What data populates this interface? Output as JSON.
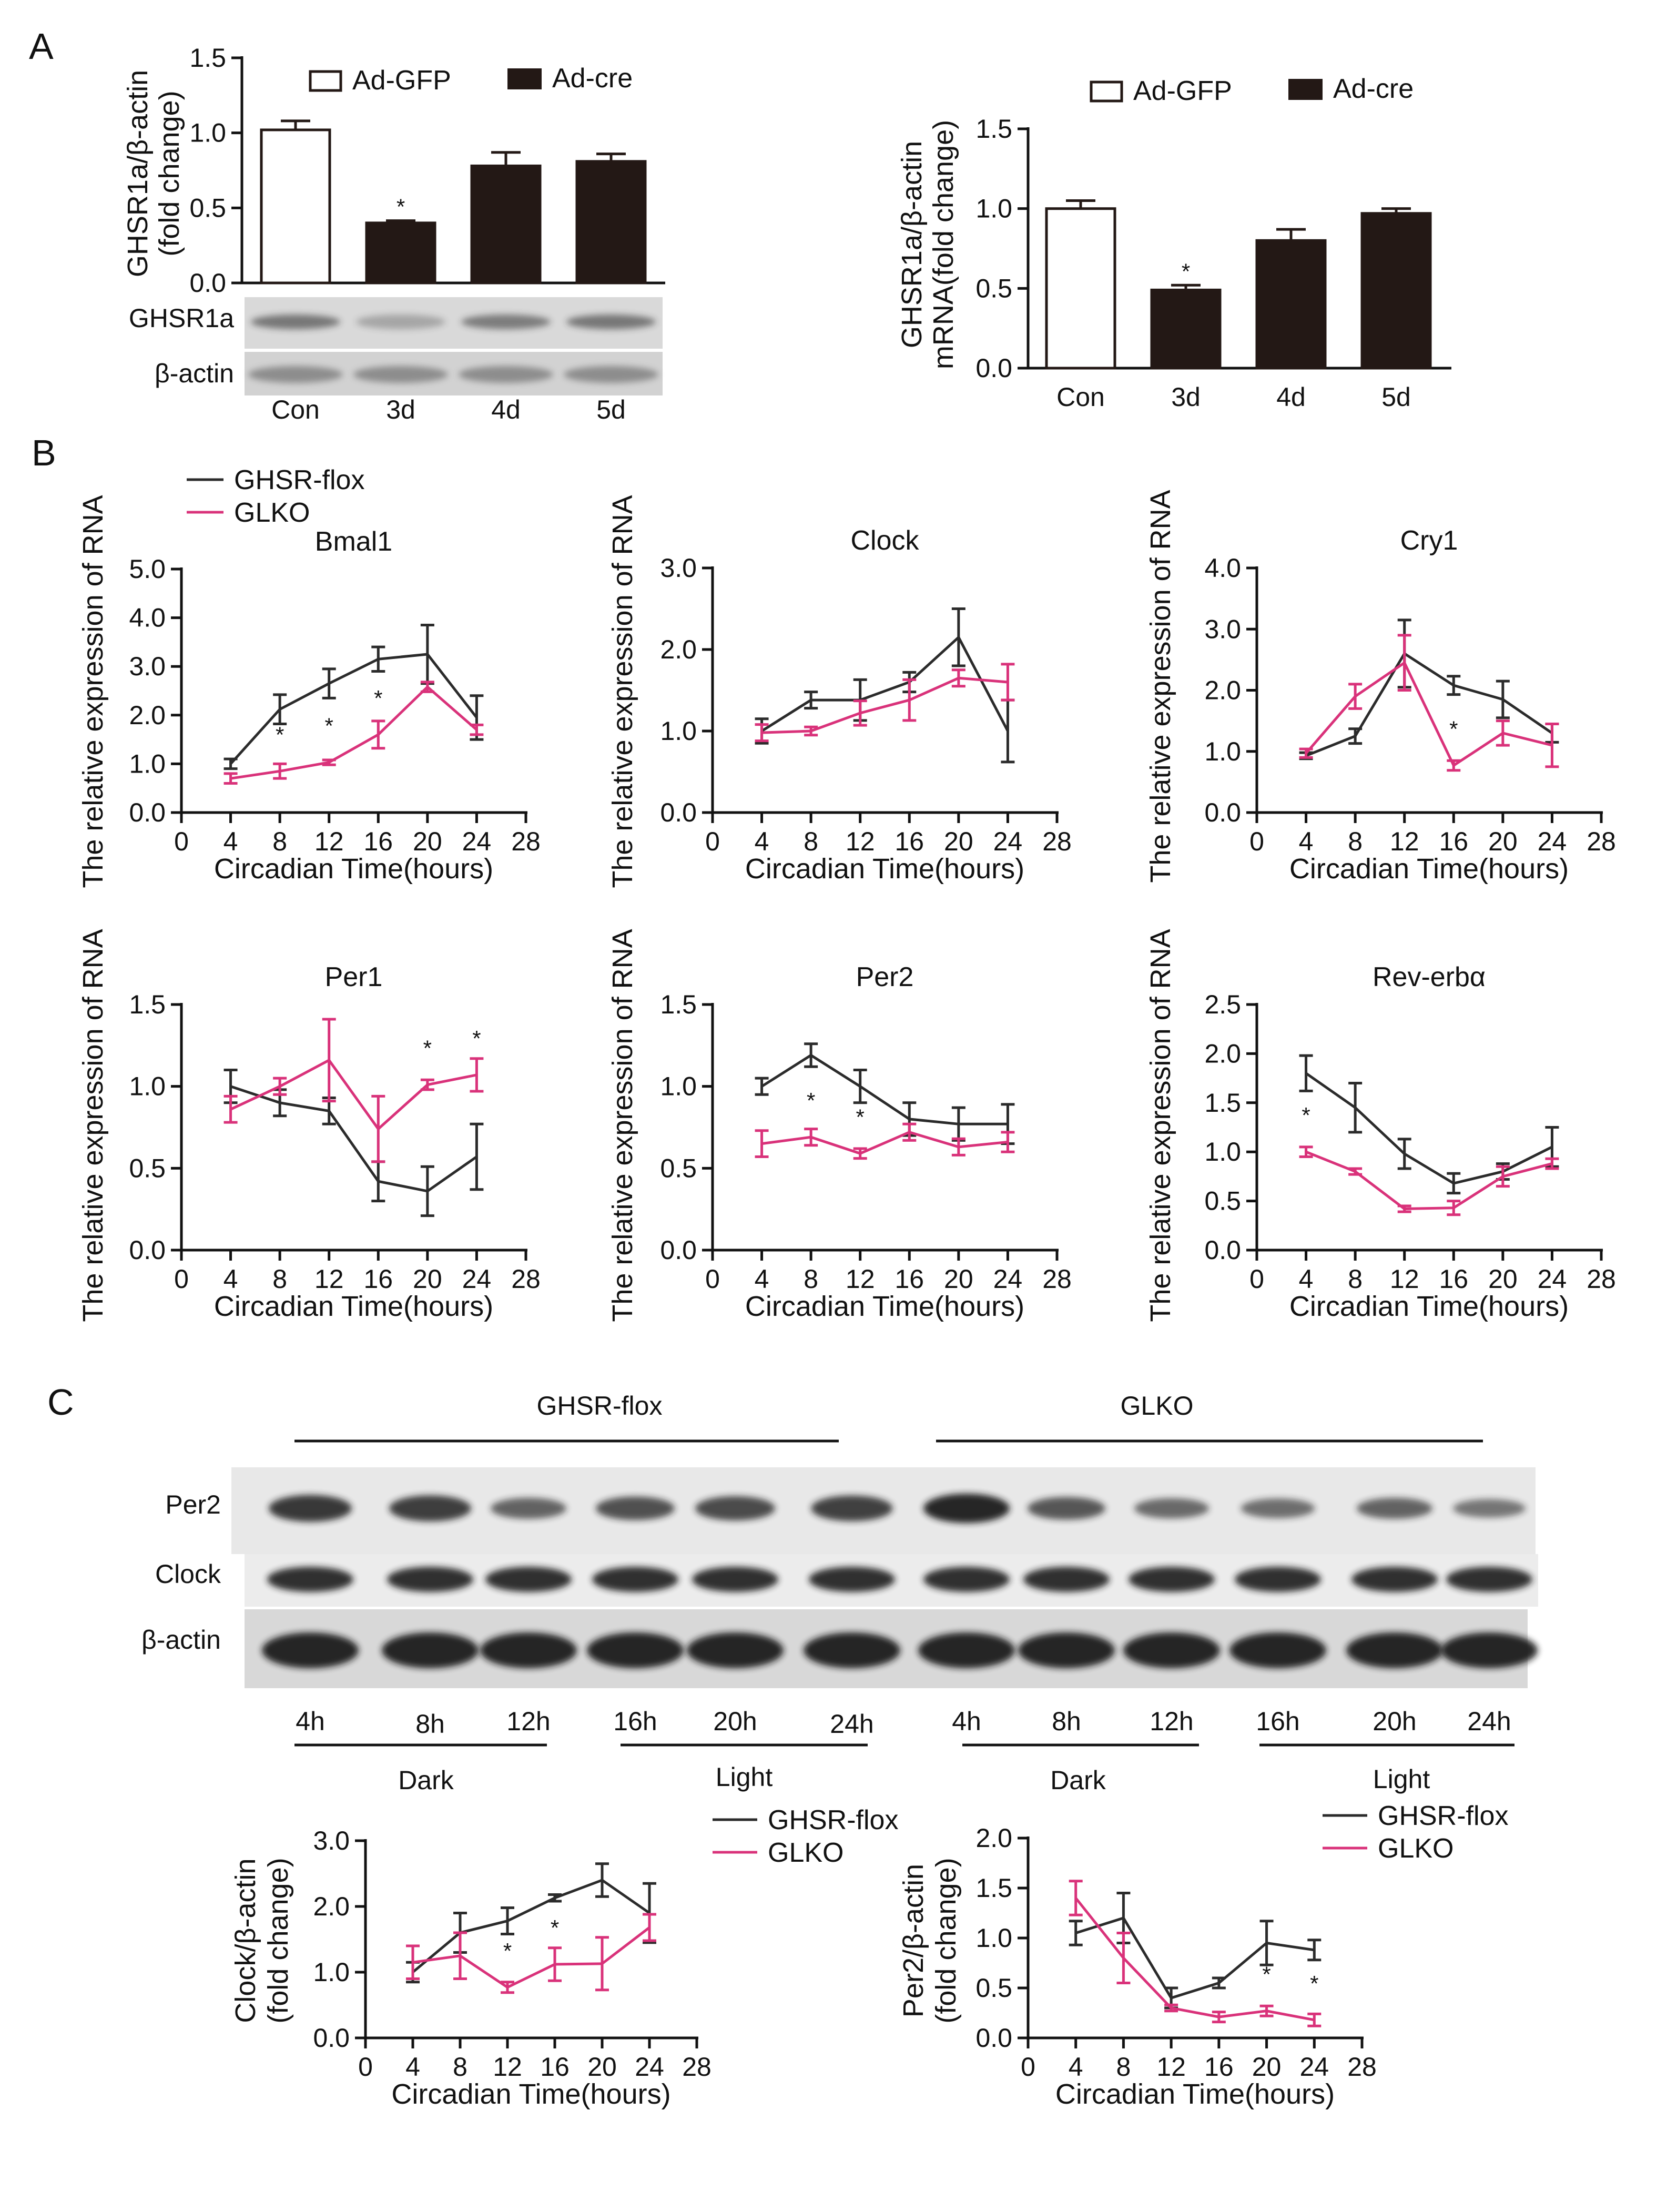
{
  "panels": {
    "a": "A",
    "b": "B",
    "c": "C"
  },
  "colors": {
    "flox": "#2b2b2b",
    "glko": "#d9327a",
    "dark_bar": "#231815"
  },
  "chart_data": [
    {
      "id": "a_protein",
      "type": "bar",
      "categories": [
        "Con",
        "3d",
        "4d",
        "5d"
      ],
      "values": [
        1.02,
        0.4,
        0.78,
        0.81
      ],
      "errors": [
        0.06,
        0.015,
        0.09,
        0.05
      ],
      "fill": [
        "open",
        "filled",
        "filled",
        "filled"
      ],
      "significance": [
        "",
        "*",
        "",
        ""
      ],
      "ylabel": [
        "GHSR1a/β-actin",
        "(fold change)"
      ],
      "ylim": [
        0,
        1.5
      ],
      "yticks": [
        0.0,
        0.5,
        1.0,
        1.5
      ],
      "ytick_labels": [
        "0.0",
        "0.5",
        "1.0",
        "1.5"
      ],
      "legend": [
        "Ad-GFP",
        "Ad-cre"
      ],
      "blot_rows": [
        "GHSR1a",
        "β-actin"
      ]
    },
    {
      "id": "a_mrna",
      "type": "bar",
      "categories": [
        "Con",
        "3d",
        "4d",
        "5d"
      ],
      "values": [
        1.0,
        0.49,
        0.8,
        0.97
      ],
      "errors": [
        0.05,
        0.03,
        0.07,
        0.03
      ],
      "fill": [
        "open",
        "filled",
        "filled",
        "filled"
      ],
      "significance": [
        "",
        "*",
        "",
        ""
      ],
      "ylabel": [
        "GHSR1a/β-actin",
        "mRNA(fold change)"
      ],
      "ylim": [
        0,
        1.5
      ],
      "yticks": [
        0.0,
        0.5,
        1.0,
        1.5
      ],
      "ytick_labels": [
        "0.0",
        "0.5",
        "1.0",
        "1.5"
      ],
      "legend": [
        "Ad-GFP",
        "Ad-cre"
      ]
    },
    {
      "id": "b_bmal1",
      "type": "line",
      "title": "Bmal1",
      "x": [
        4,
        8,
        12,
        16,
        20,
        24
      ],
      "series": [
        {
          "name": "GHSR-flox",
          "values": [
            1.0,
            2.12,
            2.65,
            3.15,
            3.25,
            1.95
          ],
          "errors": [
            0.1,
            0.3,
            0.3,
            0.25,
            0.6,
            0.45
          ]
        },
        {
          "name": "GLKO",
          "values": [
            0.7,
            0.85,
            1.03,
            1.6,
            2.58,
            1.7
          ],
          "errors": [
            0.1,
            0.15,
            0.05,
            0.28,
            0.1,
            0.1
          ]
        }
      ],
      "significance": [
        {
          "x": 8,
          "y": 0.85
        },
        {
          "x": 12,
          "y": 1.03
        },
        {
          "x": 16,
          "y": 1.6
        }
      ],
      "xlabel": "Circadian Time(hours)",
      "ylabel": "The relative expression of RNA",
      "xlim": [
        0,
        28
      ],
      "xticks": [
        0,
        4,
        8,
        12,
        16,
        20,
        24,
        28
      ],
      "xtick_labels": [
        "0",
        "4",
        "8",
        "12",
        "16",
        "20",
        "24",
        "28"
      ],
      "ylim": [
        0,
        5
      ],
      "yticks": [
        0,
        1,
        2,
        3,
        4,
        5
      ],
      "ytick_labels": [
        "0.0",
        "1.0",
        "2.0",
        "3.0",
        "4.0",
        "5.0"
      ],
      "legend": [
        "GHSR-flox",
        "GLKO"
      ]
    },
    {
      "id": "b_clock",
      "type": "line",
      "title": "Clock",
      "x": [
        4,
        8,
        12,
        16,
        20,
        24
      ],
      "series": [
        {
          "name": "GHSR-flox",
          "values": [
            1.0,
            1.38,
            1.38,
            1.6,
            2.15,
            1.0
          ],
          "errors": [
            0.15,
            0.1,
            0.25,
            0.12,
            0.35,
            0.38
          ]
        },
        {
          "name": "GLKO",
          "values": [
            0.98,
            1.0,
            1.22,
            1.38,
            1.65,
            1.6
          ],
          "errors": [
            0.1,
            0.05,
            0.15,
            0.25,
            0.1,
            0.22
          ]
        }
      ],
      "significance": [],
      "xlabel": "Circadian Time(hours)",
      "ylabel": "The relative expression of RNA",
      "xlim": [
        0,
        28
      ],
      "xticks": [
        0,
        4,
        8,
        12,
        16,
        20,
        24,
        28
      ],
      "xtick_labels": [
        "0",
        "4",
        "8",
        "12",
        "16",
        "20",
        "24",
        "28"
      ],
      "ylim": [
        0,
        3
      ],
      "yticks": [
        0,
        1,
        2,
        3
      ],
      "ytick_labels": [
        "0.0",
        "1.0",
        "2.0",
        "3.0"
      ]
    },
    {
      "id": "b_cry1",
      "type": "line",
      "title": "Cry1",
      "x": [
        4,
        8,
        12,
        16,
        20,
        24
      ],
      "series": [
        {
          "name": "GHSR-flox",
          "values": [
            0.93,
            1.25,
            2.6,
            2.08,
            1.85,
            1.3
          ],
          "errors": [
            0.05,
            0.12,
            0.55,
            0.15,
            0.3,
            0.15
          ]
        },
        {
          "name": "GLKO",
          "values": [
            0.97,
            1.9,
            2.45,
            0.77,
            1.3,
            1.1
          ],
          "errors": [
            0.07,
            0.2,
            0.45,
            0.08,
            0.2,
            0.35
          ]
        }
      ],
      "significance": [
        {
          "x": 16,
          "y": 0.77
        }
      ],
      "xlabel": "Circadian Time(hours)",
      "ylabel": "The relative expression of RNA",
      "xlim": [
        0,
        28
      ],
      "xticks": [
        0,
        4,
        8,
        12,
        16,
        20,
        24,
        28
      ],
      "xtick_labels": [
        "0",
        "4",
        "8",
        "12",
        "16",
        "20",
        "24",
        "28"
      ],
      "ylim": [
        0,
        4
      ],
      "yticks": [
        0,
        1,
        2,
        3,
        4
      ],
      "ytick_labels": [
        "0.0",
        "1.0",
        "2.0",
        "3.0",
        "4.0"
      ]
    },
    {
      "id": "b_per1",
      "type": "line",
      "title": "Per1",
      "x": [
        4,
        8,
        12,
        16,
        20,
        24
      ],
      "series": [
        {
          "name": "GHSR-flox",
          "values": [
            1.0,
            0.9,
            0.85,
            0.42,
            0.36,
            0.57
          ],
          "errors": [
            0.1,
            0.08,
            0.08,
            0.12,
            0.15,
            0.2
          ]
        },
        {
          "name": "GLKO",
          "values": [
            0.86,
            1.0,
            1.16,
            0.74,
            1.01,
            1.07
          ],
          "errors": [
            0.08,
            0.05,
            0.25,
            0.2,
            0.03,
            0.1
          ]
        }
      ],
      "significance": [
        {
          "x": 20,
          "y": 1.01
        },
        {
          "x": 24,
          "y": 1.07
        }
      ],
      "xlabel": "Circadian Time(hours)",
      "ylabel": "The relative expression of RNA",
      "xlim": [
        0,
        28
      ],
      "xticks": [
        0,
        4,
        8,
        12,
        16,
        20,
        24,
        28
      ],
      "xtick_labels": [
        "0",
        "4",
        "8",
        "12",
        "16",
        "20",
        "24",
        "28"
      ],
      "ylim": [
        0,
        1.5
      ],
      "yticks": [
        0,
        0.5,
        1.0,
        1.5
      ],
      "ytick_labels": [
        "0.0",
        "0.5",
        "1.0",
        "1.5"
      ]
    },
    {
      "id": "b_per2",
      "type": "line",
      "title": "Per2",
      "x": [
        4,
        8,
        12,
        16,
        20,
        24
      ],
      "series": [
        {
          "name": "GHSR-flox",
          "values": [
            1.0,
            1.19,
            1.0,
            0.8,
            0.77,
            0.77
          ],
          "errors": [
            0.05,
            0.07,
            0.1,
            0.1,
            0.1,
            0.12
          ]
        },
        {
          "name": "GLKO",
          "values": [
            0.65,
            0.69,
            0.59,
            0.72,
            0.63,
            0.66
          ],
          "errors": [
            0.08,
            0.05,
            0.03,
            0.05,
            0.05,
            0.06
          ]
        }
      ],
      "significance": [
        {
          "x": 8,
          "y": 0.69
        },
        {
          "x": 12,
          "y": 0.59
        }
      ],
      "xlabel": "Circadian Time(hours)",
      "ylabel": "The relative expression of RNA",
      "xlim": [
        0,
        28
      ],
      "xticks": [
        0,
        4,
        8,
        12,
        16,
        20,
        24,
        28
      ],
      "xtick_labels": [
        "0",
        "4",
        "8",
        "12",
        "16",
        "20",
        "24",
        "28"
      ],
      "ylim": [
        0,
        1.5
      ],
      "yticks": [
        0,
        0.5,
        1.0,
        1.5
      ],
      "ytick_labels": [
        "0.0",
        "0.5",
        "1.0",
        "1.5"
      ]
    },
    {
      "id": "b_reverba",
      "type": "line",
      "title": "Rev-erbα",
      "x": [
        4,
        8,
        12,
        16,
        20,
        24
      ],
      "series": [
        {
          "name": "GHSR-flox",
          "values": [
            1.8,
            1.45,
            0.98,
            0.68,
            0.8,
            1.05
          ],
          "errors": [
            0.18,
            0.25,
            0.15,
            0.1,
            0.08,
            0.2
          ]
        },
        {
          "name": "GLKO",
          "values": [
            1.0,
            0.8,
            0.42,
            0.43,
            0.75,
            0.88
          ],
          "errors": [
            0.05,
            0.03,
            0.03,
            0.07,
            0.1,
            0.05
          ]
        }
      ],
      "significance": [
        {
          "x": 4,
          "y": 1.0
        }
      ],
      "xlabel": "Circadian Time(hours)",
      "ylabel": "The relative expression of RNA",
      "xlim": [
        0,
        28
      ],
      "xticks": [
        0,
        4,
        8,
        12,
        16,
        20,
        24,
        28
      ],
      "xtick_labels": [
        "0",
        "4",
        "8",
        "12",
        "16",
        "20",
        "24",
        "28"
      ],
      "ylim": [
        0,
        2.5
      ],
      "yticks": [
        0,
        0.5,
        1.0,
        1.5,
        2.0,
        2.5
      ],
      "ytick_labels": [
        "0.0",
        "0.5",
        "1.0",
        "1.5",
        "2.0",
        "2.5"
      ]
    },
    {
      "id": "c_clock",
      "type": "line",
      "x": [
        4,
        8,
        12,
        16,
        20,
        24
      ],
      "series": [
        {
          "name": "GHSR-flox",
          "values": [
            1.0,
            1.6,
            1.78,
            2.13,
            2.4,
            1.9
          ],
          "errors": [
            0.15,
            0.3,
            0.2,
            0.05,
            0.25,
            0.45
          ]
        },
        {
          "name": "GLKO",
          "values": [
            1.15,
            1.25,
            0.77,
            1.12,
            1.13,
            1.68
          ],
          "errors": [
            0.25,
            0.35,
            0.08,
            0.25,
            0.4,
            0.2
          ]
        }
      ],
      "significance": [
        {
          "x": 12,
          "y": 0.77
        },
        {
          "x": 16,
          "y": 1.12
        }
      ],
      "xlabel": "Circadian Time(hours)",
      "ylabel": [
        "Clock/β-actin",
        "(fold change)"
      ],
      "xlim": [
        0,
        28
      ],
      "xticks": [
        0,
        4,
        8,
        12,
        16,
        20,
        24,
        28
      ],
      "xtick_labels": [
        "0",
        "4",
        "8",
        "12",
        "16",
        "20",
        "24",
        "28"
      ],
      "ylim": [
        0,
        3
      ],
      "yticks": [
        0,
        1,
        2,
        3
      ],
      "ytick_labels": [
        "0.0",
        "1.0",
        "2.0",
        "3.0"
      ],
      "legend": [
        "GHSR-flox",
        "GLKO"
      ]
    },
    {
      "id": "c_per2",
      "type": "line",
      "x": [
        4,
        8,
        12,
        16,
        20,
        24
      ],
      "series": [
        {
          "name": "GHSR-flox",
          "values": [
            1.05,
            1.2,
            0.4,
            0.55,
            0.95,
            0.88
          ],
          "errors": [
            0.12,
            0.25,
            0.1,
            0.05,
            0.22,
            0.1
          ]
        },
        {
          "name": "GLKO",
          "values": [
            1.4,
            0.8,
            0.3,
            0.21,
            0.27,
            0.18
          ],
          "errors": [
            0.17,
            0.25,
            0.03,
            0.05,
            0.05,
            0.06
          ]
        }
      ],
      "significance": [
        {
          "x": 20,
          "y": 0.27
        },
        {
          "x": 24,
          "y": 0.18
        }
      ],
      "xlabel": "Circadian Time(hours)",
      "ylabel": [
        "Per2/β-actin",
        "(fold change)"
      ],
      "xlim": [
        0,
        28
      ],
      "xticks": [
        0,
        4,
        8,
        12,
        16,
        20,
        24,
        28
      ],
      "xtick_labels": [
        "0",
        "4",
        "8",
        "12",
        "16",
        "20",
        "24",
        "28"
      ],
      "ylim": [
        0,
        2
      ],
      "yticks": [
        0,
        0.5,
        1.0,
        1.5,
        2.0
      ],
      "ytick_labels": [
        "0.0",
        "0.5",
        "1.0",
        "1.5",
        "2.0"
      ],
      "legend": [
        "GHSR-flox",
        "GLKO"
      ]
    }
  ],
  "blot_a": {
    "rows": [
      "GHSR1a",
      "β-actin"
    ],
    "lanes": [
      "Con",
      "3d",
      "4d",
      "5d"
    ]
  },
  "blot_c": {
    "groups": [
      "GHSR-flox",
      "GLKO"
    ],
    "rows": [
      "Per2",
      "Clock",
      "β-actin"
    ],
    "lanes": [
      "4h",
      "8h",
      "12h",
      "16h",
      "20h",
      "24h",
      "4h",
      "8h",
      "12h",
      "16h",
      "20h",
      "24h"
    ],
    "phases": [
      "Dark",
      "Light",
      "Dark",
      "Light"
    ],
    "per2_intensity": [
      0.85,
      0.8,
      0.5,
      0.65,
      0.7,
      0.78,
      1.0,
      0.6,
      0.45,
      0.42,
      0.5,
      0.35
    ]
  }
}
